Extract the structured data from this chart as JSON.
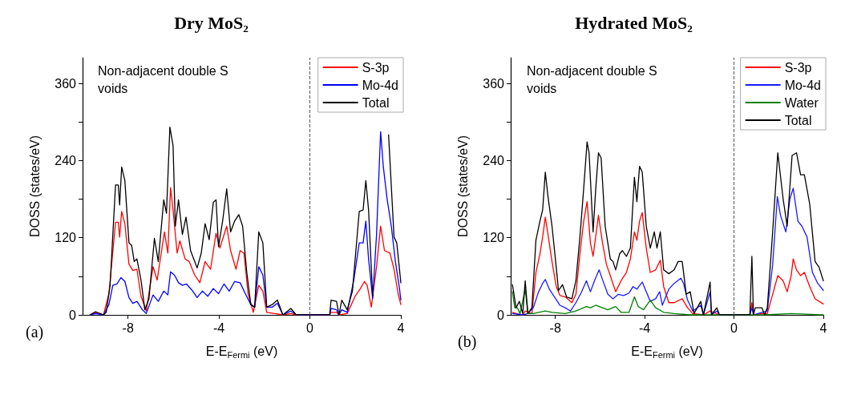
{
  "chart_data": [
    {
      "type": "line",
      "title": "Dry MoS₂",
      "xlabel": "E-E$_{Fermi}$ (eV)",
      "ylabel": "DOSS (states/eV)",
      "annotations": [
        "Non-adjacent double S voids",
        "(a)"
      ],
      "xlim": [
        -10,
        4
      ],
      "ylim": [
        0,
        400
      ],
      "xticks": [
        -8,
        -4,
        0,
        4
      ],
      "yticks": [
        0,
        {
          "value": 60,
          "label": null
        },
        120,
        {
          "value": 180,
          "label": null
        },
        240,
        {
          "value": 300,
          "label": null
        },
        360
      ],
      "legend": "top right",
      "marker": "none",
      "line_style": "solid",
      "ref_lines": [
        {
          "axis": "x",
          "value": 0,
          "color": "#555555",
          "line_style": "dashed"
        }
      ],
      "series": [
        {
          "name": "S-3p",
          "color": "#ff0000",
          "x": [
            -9.67,
            -9.43,
            -9.08,
            -8.84,
            -8.55,
            -8.43,
            -8.37,
            -8.28,
            -8.14,
            -7.96,
            -7.79,
            -7.61,
            -7.43,
            -7.2,
            -6.9,
            -6.72,
            -6.4,
            -6.25,
            -6.13,
            -6.02,
            -5.84,
            -5.72,
            -5.49,
            -5.31,
            -5.07,
            -4.84,
            -4.61,
            -4.37,
            -4.13,
            -3.96,
            -3.66,
            -3.49,
            -3.25,
            -3.07,
            -2.9,
            -2.72,
            -2.49,
            -2.25,
            -2.07,
            -1.9,
            -1.55,
            -1.19,
            -0.84,
            -0.6,
            0.87,
            0.93,
            1.17,
            1.28,
            1.64,
            1.99,
            2.22,
            2.4,
            2.52,
            2.7,
            2.93,
            3.11,
            3.28,
            3.52,
            3.7,
            3.88,
            4.0
          ],
          "values": [
            0,
            4,
            0,
            33,
            144,
            144,
            121,
            161,
            142,
            79,
            69,
            71,
            29,
            6,
            75,
            54,
            129,
            96,
            198,
            163,
            96,
            115,
            87,
            83,
            62,
            50,
            83,
            71,
            127,
            104,
            138,
            100,
            71,
            100,
            96,
            33,
            4,
            46,
            37,
            4,
            2,
            0,
            2,
            0,
            0,
            4,
            4,
            0,
            2,
            29,
            41,
            52,
            46,
            12,
            75,
            138,
            100,
            96,
            71,
            33,
            16
          ]
        },
        {
          "name": "Mo-4d",
          "color": "#0000ff",
          "x": [
            -9.67,
            -9.43,
            -9.08,
            -8.84,
            -8.67,
            -8.49,
            -8.31,
            -8.14,
            -7.96,
            -7.79,
            -7.61,
            -7.37,
            -7.2,
            -6.9,
            -6.67,
            -6.43,
            -6.25,
            -6.13,
            -5.96,
            -5.78,
            -5.61,
            -5.43,
            -5.2,
            -4.96,
            -4.73,
            -4.49,
            -4.25,
            -4.02,
            -3.78,
            -3.55,
            -3.31,
            -3.07,
            -2.84,
            -2.6,
            -2.43,
            -2.25,
            -2.07,
            -1.9,
            -1.66,
            -1.43,
            -1.19,
            -0.84,
            -0.6,
            0.87,
            0.93,
            1.17,
            1.28,
            1.4,
            1.64,
            1.93,
            2.17,
            2.34,
            2.46,
            2.58,
            2.76,
            2.93,
            3.11,
            3.23,
            3.4,
            3.58,
            3.76,
            3.94,
            4.0
          ],
          "values": [
            0,
            2,
            0,
            16,
            46,
            48,
            58,
            52,
            27,
            18,
            21,
            8,
            2,
            31,
            21,
            37,
            31,
            67,
            62,
            50,
            46,
            48,
            39,
            27,
            37,
            29,
            41,
            33,
            48,
            37,
            52,
            50,
            33,
            16,
            12,
            75,
            62,
            12,
            12,
            18,
            0,
            6,
            0,
            0,
            10,
            8,
            0,
            8,
            4,
            54,
            112,
            112,
            146,
            87,
            25,
            125,
            285,
            230,
            179,
            138,
            83,
            41,
            23
          ]
        },
        {
          "name": "Total",
          "color": "#000000",
          "x": [
            -9.67,
            -9.43,
            -9.08,
            -8.96,
            -8.79,
            -8.55,
            -8.43,
            -8.37,
            -8.28,
            -8.14,
            -7.96,
            -7.84,
            -7.73,
            -7.61,
            -7.43,
            -7.26,
            -7.08,
            -6.84,
            -6.67,
            -6.43,
            -6.31,
            -6.16,
            -6.02,
            -5.92,
            -5.78,
            -5.61,
            -5.45,
            -5.25,
            -4.96,
            -4.78,
            -4.61,
            -4.43,
            -4.25,
            -4.13,
            -4.02,
            -3.84,
            -3.66,
            -3.49,
            -3.31,
            -3.13,
            -2.96,
            -2.78,
            -2.6,
            -2.43,
            -2.25,
            -2.07,
            -1.9,
            -1.66,
            -1.43,
            -1.19,
            -0.84,
            -0.6,
            0.87,
            0.93,
            1.17,
            1.28,
            1.4,
            1.64,
            1.87,
            2.17,
            2.34,
            2.46,
            2.58,
            2.76,
            2.93,
            3.17,
            3.46,
            3.7,
            3.82,
            4.0
          ],
          "values": [
            0,
            5,
            0,
            4,
            46,
            202,
            202,
            171,
            230,
            209,
            112,
            108,
            83,
            87,
            54,
            8,
            25,
            119,
            83,
            179,
            158,
            292,
            263,
            138,
            179,
            125,
            152,
            100,
            73,
            96,
            142,
            117,
            175,
            179,
            106,
            146,
            196,
            129,
            146,
            156,
            138,
            67,
            16,
            12,
            129,
            112,
            12,
            16,
            23,
            0,
            10,
            0,
            0,
            23,
            21,
            0,
            23,
            8,
            37,
            161,
            163,
            209,
            163,
            29,
            null,
            null,
            280,
            121,
            112,
            50
          ]
        }
      ]
    },
    {
      "type": "line",
      "title": "Hydrated MoS₂",
      "xlabel": "E-E$_{Fermi}$ (eV)",
      "ylabel": "DOSS (states/eV)",
      "annotations": [
        "Non-adjacent double S voids",
        "(b)"
      ],
      "xlim": [
        -10,
        4
      ],
      "ylim": [
        0,
        400
      ],
      "xticks": [
        -8,
        -4,
        0,
        4
      ],
      "yticks": [
        0,
        {
          "value": 60,
          "label": null
        },
        120,
        {
          "value": 180,
          "label": null
        },
        240,
        {
          "value": 300,
          "label": null
        },
        360
      ],
      "legend": "top right",
      "marker": "none",
      "line_style": "solid",
      "ref_lines": [
        {
          "axis": "x",
          "value": 0,
          "color": "#555555",
          "line_style": "dashed"
        }
      ],
      "series": [
        {
          "name": "S-3p",
          "color": "#ff0000",
          "x": [
            -9.92,
            -9.76,
            -9.46,
            -9.35,
            -9.05,
            -8.87,
            -8.69,
            -8.57,
            -8.45,
            -8.33,
            -8.15,
            -7.96,
            -7.79,
            -7.56,
            -7.26,
            -7.08,
            -6.9,
            -6.73,
            -6.58,
            -6.43,
            -6.31,
            -6.07,
            -5.89,
            -5.71,
            -5.54,
            -5.3,
            -5.06,
            -4.82,
            -4.64,
            -4.46,
            -4.35,
            -4.23,
            -4.11,
            -3.93,
            -3.75,
            -3.51,
            -3.3,
            -3.15,
            -2.92,
            -2.68,
            -2.32,
            -2.08,
            -1.85,
            -1.37,
            -1.07,
            -0.65,
            0.71,
            0.8,
            0.87,
            1.25,
            1.49,
            1.73,
            1.96,
            2.2,
            2.38,
            2.56,
            2.65,
            2.8,
            2.98,
            3.15,
            3.39,
            3.63,
            4.0
          ],
          "values": [
            4,
            2,
            0,
            6,
            2,
            66,
            95,
            121,
            152,
            125,
            83,
            44,
            30,
            28,
            19,
            32,
            95,
            146,
            176,
            112,
            91,
            155,
            112,
            78,
            61,
            36,
            53,
            66,
            87,
            129,
            116,
            146,
            159,
            104,
            66,
            70,
            85,
            44,
            19,
            19,
            25,
            11,
            2,
            0,
            6,
            0,
            0,
            19,
            0,
            2,
            2,
            32,
            61,
            53,
            36,
            61,
            87,
            70,
            61,
            66,
            44,
            25,
            17
          ]
        },
        {
          "name": "Mo-4d",
          "color": "#1a1aff",
          "x": [
            -9.92,
            -9.46,
            -9.23,
            -8.99,
            -8.75,
            -8.57,
            -8.45,
            -8.27,
            -8.04,
            -7.8,
            -7.56,
            -7.32,
            -7.08,
            -6.85,
            -6.61,
            -6.43,
            -6.25,
            -6.04,
            -5.89,
            -5.65,
            -5.42,
            -5.18,
            -4.94,
            -4.7,
            -4.52,
            -4.35,
            -4.11,
            -3.93,
            -3.75,
            -3.51,
            -3.33,
            -3.21,
            -2.92,
            -2.68,
            -2.38,
            -2.26,
            -2.08,
            -1.85,
            -1.49,
            -1.37,
            -1.07,
            -1.01,
            -0.77,
            -0.65,
            0.71,
            0.8,
            0.87,
            1.25,
            1.49,
            1.73,
            1.94,
            2.08,
            2.32,
            2.5,
            2.65,
            2.86,
            3.04,
            3.27,
            3.51,
            3.75,
            4.0
          ],
          "values": [
            2,
            0,
            2,
            11,
            36,
            49,
            55,
            40,
            28,
            15,
            11,
            6,
            19,
            34,
            53,
            36,
            53,
            70,
            55,
            32,
            25,
            32,
            30,
            34,
            44,
            40,
            51,
            36,
            21,
            25,
            36,
            15,
            40,
            49,
            57,
            49,
            23,
            6,
            15,
            0,
            36,
            0,
            6,
            0,
            0,
            11,
            0,
            4,
            6,
            78,
            184,
            155,
            129,
            180,
            197,
            146,
            138,
            121,
            66,
            49,
            38
          ]
        },
        {
          "name": "Water",
          "color": "#008000",
          "x": [
            -9.92,
            -9.82,
            -9.7,
            -9.58,
            -9.35,
            -9.23,
            -8.99,
            -8.75,
            -8.45,
            -8.15,
            -7.56,
            -7.08,
            -6.61,
            -6.43,
            -6.19,
            -5.89,
            -5.65,
            -5.3,
            -5.06,
            -4.7,
            -4.46,
            -4.29,
            -4.05,
            -3.75,
            -3.51,
            -3.15,
            -2.68,
            -1.96,
            -0.65,
            0.71,
            1.37,
            2.56,
            4.0
          ],
          "values": [
            36,
            11,
            11,
            2,
            40,
            2,
            2,
            4,
            6,
            4,
            2,
            6,
            13,
            11,
            15,
            11,
            8,
            13,
            4,
            4,
            28,
            13,
            8,
            23,
            11,
            4,
            2,
            0,
            0,
            0,
            0,
            2,
            0
          ]
        },
        {
          "name": "Total",
          "color": "#000000",
          "x": [
            -9.92,
            -9.76,
            -9.61,
            -9.46,
            -9.35,
            -9.23,
            -9.05,
            -8.87,
            -8.69,
            -8.57,
            -8.45,
            -8.33,
            -8.15,
            -7.96,
            -7.86,
            -7.68,
            -7.5,
            -7.26,
            -7.08,
            -6.9,
            -6.73,
            -6.58,
            -6.49,
            -6.31,
            -6.19,
            -6.07,
            -5.95,
            -5.77,
            -5.54,
            -5.42,
            -5.3,
            -5.12,
            -5.0,
            -4.82,
            -4.64,
            -4.46,
            -4.35,
            -4.23,
            -4.11,
            -3.93,
            -3.75,
            -3.57,
            -3.45,
            -3.3,
            -3.15,
            -2.92,
            -2.68,
            -2.5,
            -2.32,
            -2.14,
            -1.96,
            -1.79,
            -1.49,
            -1.37,
            -1.07,
            -1.01,
            -0.77,
            -0.65,
            0.71,
            0.8,
            0.87,
            0.95,
            1.25,
            1.37,
            1.49,
            1.73,
            1.96,
            2.2,
            2.38,
            2.6,
            2.8,
            2.98,
            3.15,
            3.39,
            3.63,
            3.81,
            4.0
          ],
          "values": [
            47,
            11,
            21,
            2,
            53,
            2,
            11,
            116,
            146,
            163,
            222,
            184,
            138,
            74,
            38,
            47,
            28,
            25,
            53,
            121,
            197,
            269,
            252,
            129,
            197,
            252,
            244,
            138,
            87,
            83,
            70,
            95,
            100,
            91,
            104,
            214,
            176,
            231,
            222,
            138,
            104,
            129,
            104,
            129,
            70,
            64,
            70,
            83,
            83,
            32,
            36,
            2,
            21,
            0,
            51,
            0,
            11,
            0,
            0,
            91,
            0,
            11,
            11,
            0,
            11,
            129,
            252,
            180,
            138,
            248,
            252,
            218,
            218,
            172,
            83,
            74,
            53
          ]
        }
      ]
    }
  ]
}
